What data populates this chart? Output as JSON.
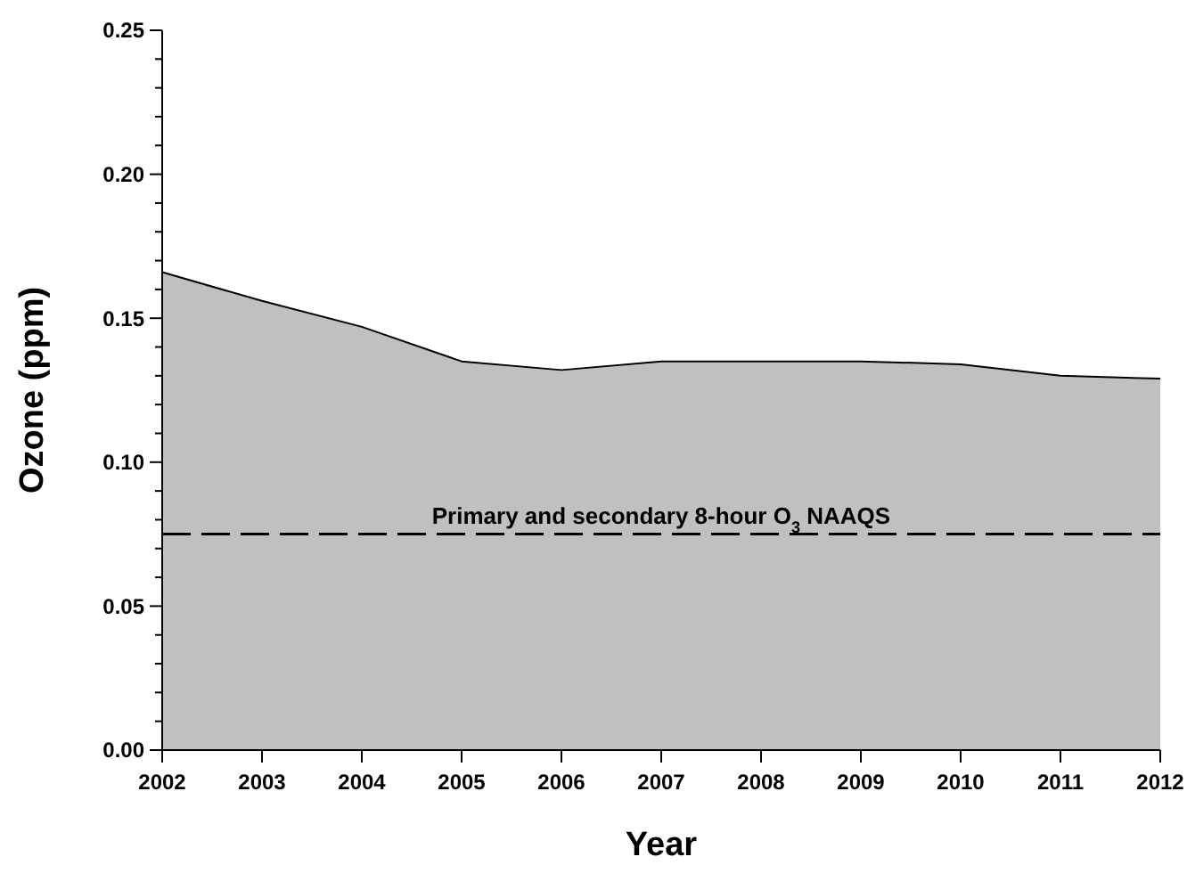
{
  "chart_data": {
    "type": "area",
    "xlabel": "Year",
    "ylabel": "Ozone (ppm)",
    "x": [
      2002,
      2003,
      2004,
      2005,
      2006,
      2007,
      2008,
      2009,
      2010,
      2011,
      2012
    ],
    "series": [
      {
        "color": "#c0c0c0",
        "values": [
          0.166,
          0.156,
          0.147,
          0.135,
          0.132,
          0.135,
          0.135,
          0.135,
          0.134,
          0.13,
          0.129
        ]
      }
    ],
    "xlim": [
      2002,
      2012
    ],
    "xticks": [
      2002,
      2003,
      2004,
      2005,
      2006,
      2007,
      2008,
      2009,
      2010,
      2011,
      2012
    ],
    "ylim": [
      0,
      0.25
    ],
    "yticks": [
      {
        "value": 0,
        "label": "0.00"
      },
      {
        "value": 0.01,
        "label": null
      },
      {
        "value": 0.02,
        "label": null
      },
      {
        "value": 0.03,
        "label": null
      },
      {
        "value": 0.04,
        "label": null
      },
      {
        "value": 0.05,
        "label": "0.05"
      },
      {
        "value": 0.06,
        "label": null
      },
      {
        "value": 0.07,
        "label": null
      },
      {
        "value": 0.08,
        "label": null
      },
      {
        "value": 0.09,
        "label": null
      },
      {
        "value": 0.1,
        "label": "0.10"
      },
      {
        "value": 0.11,
        "label": null
      },
      {
        "value": 0.12,
        "label": null
      },
      {
        "value": 0.13,
        "label": null
      },
      {
        "value": 0.14,
        "label": null
      },
      {
        "value": 0.15,
        "label": "0.15"
      },
      {
        "value": 0.16,
        "label": null
      },
      {
        "value": 0.17,
        "label": null
      },
      {
        "value": 0.18,
        "label": null
      },
      {
        "value": 0.19,
        "label": null
      },
      {
        "value": 0.2,
        "label": "0.20"
      },
      {
        "value": 0.21,
        "label": null
      },
      {
        "value": 0.22,
        "label": null
      },
      {
        "value": 0.23,
        "label": null
      },
      {
        "value": 0.24,
        "label": null
      },
      {
        "value": 0.25,
        "label": "0.25"
      }
    ],
    "ref_lines": [
      {
        "axis": "y",
        "value": 0.075,
        "label": "Primary and secondary 8-hour O$_{3}$ NAAQS",
        "color": "#000000",
        "line_style": "dashed"
      }
    ],
    "grid": false
  }
}
